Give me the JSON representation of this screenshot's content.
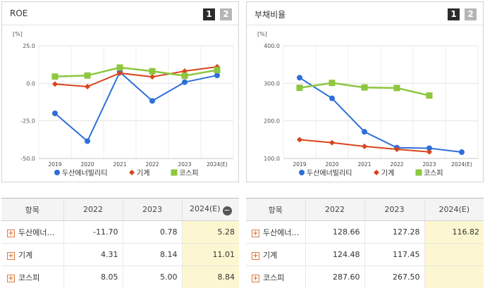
{
  "panels": [
    {
      "title": "ROE",
      "pages": [
        "1",
        "2"
      ]
    },
    {
      "title": "부채비율",
      "pages": [
        "1",
        "2"
      ]
    }
  ],
  "chart_data": [
    {
      "type": "line",
      "title": "ROE",
      "unit": "[%]",
      "x": [
        "2019",
        "2020",
        "2021",
        "2022",
        "2023",
        "2024(E)"
      ],
      "ylim": [
        -50.0,
        25.0
      ],
      "yticks": [
        "25.0",
        "0.0",
        "-25.0",
        "-50.0"
      ],
      "ytick_values": [
        25,
        0,
        -25,
        -50
      ],
      "grid": true,
      "legend_position": "bottom",
      "series": [
        {
          "name": "두산에너빌리티",
          "color": "#2e6fd8",
          "marker": "circle",
          "values": [
            -20.0,
            -38.5,
            7.5,
            -11.7,
            0.78,
            5.28
          ]
        },
        {
          "name": "기계",
          "color": "#d9441b",
          "marker": "diamond",
          "values": [
            -0.5,
            -2.2,
            6.8,
            4.31,
            8.14,
            11.01
          ]
        },
        {
          "name": "코스피",
          "color": "#8dc63f",
          "marker": "square",
          "values": [
            4.5,
            5.2,
            10.5,
            8.05,
            5.0,
            8.84
          ]
        }
      ]
    },
    {
      "type": "line",
      "title": "부채비율",
      "unit": "[%]",
      "x": [
        "2019",
        "2020",
        "2021",
        "2022",
        "2023",
        "2024(E)"
      ],
      "ylim": [
        100.0,
        400.0
      ],
      "yticks": [
        "400.0",
        "300.0",
        "200.0",
        "100.0"
      ],
      "ytick_values": [
        400,
        300,
        200,
        100
      ],
      "grid": true,
      "legend_position": "bottom",
      "series": [
        {
          "name": "두산에너빌리티",
          "color": "#2e6fd8",
          "marker": "circle",
          "values": [
            315.0,
            260.0,
            171.0,
            128.66,
            127.28,
            116.82
          ]
        },
        {
          "name": "기계",
          "color": "#d9441b",
          "marker": "diamond",
          "values": [
            150.0,
            142.0,
            132.0,
            124.48,
            117.45,
            null
          ]
        },
        {
          "name": "코스피",
          "color": "#8dc63f",
          "marker": "square",
          "values": [
            288.0,
            301.0,
            289.0,
            287.6,
            267.5,
            null
          ]
        }
      ]
    }
  ],
  "tables": [
    {
      "header": [
        "항목",
        "2022",
        "2023",
        "2024(E)"
      ],
      "rows": [
        {
          "label": "두산에너…",
          "values": [
            "-11.70",
            "0.78",
            "5.28"
          ]
        },
        {
          "label": "기계",
          "values": [
            "4.31",
            "8.14",
            "11.01"
          ]
        },
        {
          "label": "코스피",
          "values": [
            "8.05",
            "5.00",
            "8.84"
          ]
        }
      ]
    },
    {
      "header": [
        "항목",
        "2022",
        "2023",
        "2024(E)"
      ],
      "rows": [
        {
          "label": "두산에너…",
          "values": [
            "128.66",
            "127.28",
            "116.82"
          ]
        },
        {
          "label": "기계",
          "values": [
            "124.48",
            "117.45",
            ""
          ]
        },
        {
          "label": "코스피",
          "values": [
            "287.60",
            "267.50",
            ""
          ]
        }
      ]
    }
  ]
}
